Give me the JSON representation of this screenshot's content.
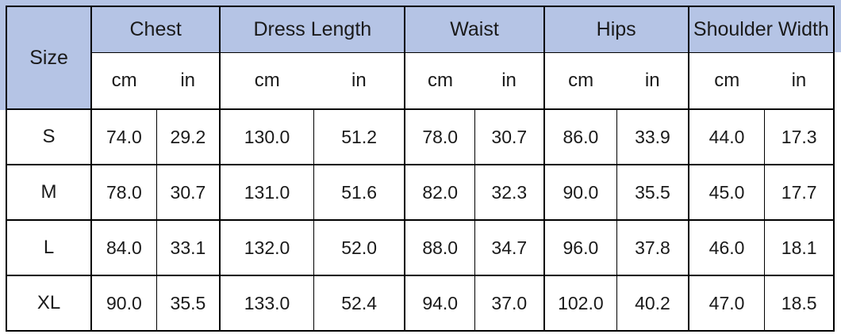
{
  "colors": {
    "header_bg": "#b5c4e5",
    "border": "#000000",
    "text": "#1a1a1a"
  },
  "chart_data": {
    "type": "table",
    "corner_header": "Size",
    "measure_groups": [
      "Chest",
      "Dress Length",
      "Waist",
      "Hips",
      "Shoulder Width"
    ],
    "unit_headers": [
      "cm",
      "in",
      "cm",
      "in",
      "cm",
      "in",
      "cm",
      "in",
      "cm",
      "in"
    ],
    "rows": [
      {
        "size": "S",
        "values": [
          "74.0",
          "29.2",
          "130.0",
          "51.2",
          "78.0",
          "30.7",
          "86.0",
          "33.9",
          "44.0",
          "17.3"
        ]
      },
      {
        "size": "M",
        "values": [
          "78.0",
          "30.7",
          "131.0",
          "51.6",
          "82.0",
          "32.3",
          "90.0",
          "35.5",
          "45.0",
          "17.7"
        ]
      },
      {
        "size": "L",
        "values": [
          "84.0",
          "33.1",
          "132.0",
          "52.0",
          "88.0",
          "34.7",
          "96.0",
          "37.8",
          "46.0",
          "18.1"
        ]
      },
      {
        "size": "XL",
        "values": [
          "90.0",
          "35.5",
          "133.0",
          "52.4",
          "94.0",
          "37.0",
          "102.0",
          "40.2",
          "47.0",
          "18.5"
        ]
      }
    ]
  }
}
